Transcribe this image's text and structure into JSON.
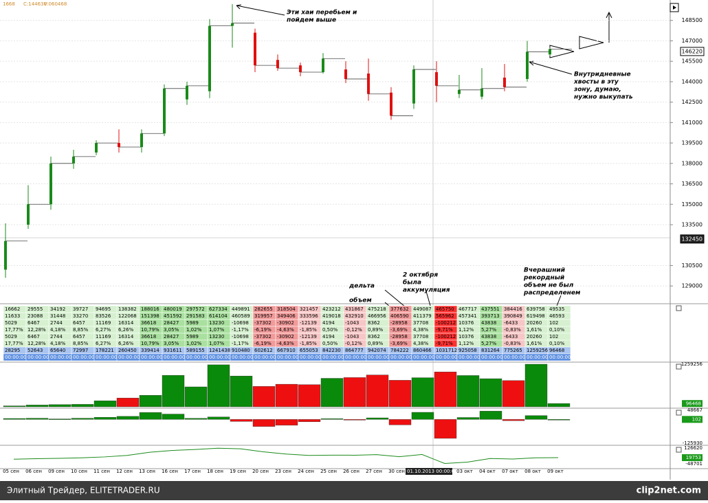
{
  "header": [
    "1668",
    "C:144630",
    "V:060468"
  ],
  "price_chart": {
    "ylim": [
      128000,
      150000
    ],
    "yticks": [
      148500,
      147000,
      145500,
      144000,
      142500,
      141000,
      139500,
      138000,
      136500,
      135000,
      133500,
      130500,
      129000
    ],
    "markers": [
      146220,
      132450
    ],
    "candles": [
      {
        "o": 130200,
        "c": 132300,
        "h": 133600,
        "l": 129600
      },
      {
        "o": 133500,
        "c": 135000,
        "h": 136400,
        "l": 133200
      },
      {
        "o": 135000,
        "c": 138000,
        "h": 138500,
        "l": 134600
      },
      {
        "o": 138000,
        "c": 138500,
        "h": 139000,
        "l": 137600
      },
      {
        "o": 138800,
        "c": 139500,
        "h": 139700,
        "l": 138600
      },
      {
        "o": 139500,
        "c": 139200,
        "h": 140500,
        "l": 138800
      },
      {
        "o": 139200,
        "c": 140200,
        "h": 140500,
        "l": 138800
      },
      {
        "o": 140200,
        "c": 143500,
        "h": 143800,
        "l": 140000
      },
      {
        "o": 142700,
        "c": 143700,
        "h": 144000,
        "l": 142300
      },
      {
        "o": 143300,
        "c": 148100,
        "h": 148600,
        "l": 142800
      },
      {
        "o": 148100,
        "c": 148300,
        "h": 149700,
        "l": 146500
      },
      {
        "o": 147600,
        "c": 145200,
        "h": 147900,
        "l": 144700
      },
      {
        "o": 145600,
        "c": 145000,
        "h": 146000,
        "l": 144800
      },
      {
        "o": 145200,
        "c": 144700,
        "h": 145400,
        "l": 144400
      },
      {
        "o": 144700,
        "c": 145700,
        "h": 146100,
        "l": 144600
      },
      {
        "o": 144900,
        "c": 144200,
        "h": 145500,
        "l": 143900
      },
      {
        "o": 144600,
        "c": 143100,
        "h": 145700,
        "l": 142600
      },
      {
        "o": 143200,
        "c": 141500,
        "h": 143600,
        "l": 141200
      },
      {
        "o": 142400,
        "c": 144900,
        "h": 145200,
        "l": 142000
      },
      {
        "o": 144700,
        "c": 143700,
        "h": 145500,
        "l": 142500
      },
      {
        "o": 143100,
        "c": 143400,
        "h": 144500,
        "l": 142800
      },
      {
        "o": 142900,
        "c": 143500,
        "h": 145000,
        "l": 142700
      },
      {
        "o": 144300,
        "c": 143600,
        "h": 145300,
        "l": 143300
      },
      {
        "o": 144200,
        "c": 146200,
        "h": 147000,
        "l": 144000
      },
      {
        "o": 146000,
        "c": 146400,
        "h": 146500,
        "l": 145900
      }
    ]
  },
  "table": {
    "cell_colors": [
      "#d6f0d0",
      "#d6f0d0",
      "#d6f0d0",
      "#d6f0d0",
      "#d6f0d0",
      "#d6f0d0",
      "#a9e09f",
      "#a9e09f",
      "#a9e09f",
      "#a9e09f",
      "#d6f0d0",
      "#f29a9a",
      "#f29a9a",
      "#f7c6c6",
      "#d6f0d0",
      "#f7c6c6",
      "#d6f0d0",
      "#f29a9a",
      "#d6f0d0",
      "#ff3030",
      "#d6f0d0",
      "#a9e09f",
      "#f7c6c6",
      "#d6f0d0",
      "#d6f0d0"
    ],
    "rows": [
      [
        "16662",
        "29555",
        "34192",
        "39727",
        "94695",
        "138382",
        "188016",
        "480019",
        "297572",
        "627334",
        "449891",
        "282655",
        "318504",
        "321457",
        "423212",
        "431867",
        "475218",
        "377632",
        "449087",
        "465750",
        "467717",
        "437551",
        "384416",
        "639758",
        "49535"
      ],
      [
        "11633",
        "23088",
        "31448",
        "33270",
        "83526",
        "122068",
        "151398",
        "451592",
        "291583",
        "614104",
        "460589",
        "319957",
        "349406",
        "333596",
        "419018",
        "432910",
        "466956",
        "406590",
        "411379",
        "565962",
        "457341",
        "393713",
        "390849",
        "619498",
        "46593"
      ],
      [
        "5029",
        "6467",
        "2744",
        "6457",
        "11169",
        "16314",
        "36618",
        "28427",
        "5989",
        "13230",
        "-10698",
        "-37302",
        "-30902",
        "-12139",
        "4194",
        "-1043",
        "8362",
        "-28958",
        "37708",
        "-100212",
        "10376",
        "43838",
        "-6433",
        "20260",
        "102"
      ],
      [
        "17,77%",
        "12,28%",
        "4,18%",
        "8,85%",
        "6,27%",
        "6,26%",
        "10,79%",
        "3,05%",
        "1,02%",
        "1,07%",
        "-1,17%",
        "-6,19%",
        "-4,63%",
        "-1,85%",
        "0,50%",
        "-0,12%",
        "0,89%",
        "-3,69%",
        "4,38%",
        "-9,71%",
        "1,12%",
        "5,27%",
        "-0,83%",
        "1,61%",
        "0,10%"
      ],
      [
        "5029",
        "6467",
        "2744",
        "6457",
        "11169",
        "16314",
        "36618",
        "28427",
        "5989",
        "13230",
        "-10698",
        "-37302",
        "-30902",
        "-12139",
        "4194",
        "-1043",
        "8362",
        "-28958",
        "37708",
        "-100212",
        "10376",
        "43838",
        "-6433",
        "20260",
        "102"
      ],
      [
        "17,77%",
        "12,28%",
        "4,18%",
        "8,85%",
        "6,27%",
        "6,26%",
        "10,79%",
        "3,05%",
        "1,02%",
        "1,07%",
        "-1,17%",
        "-6,19%",
        "-4,63%",
        "-1,85%",
        "0,50%",
        "-0,12%",
        "0,89%",
        "-3,69%",
        "4,38%",
        "-9,71%",
        "1,12%",
        "5,27%",
        "-0,83%",
        "1,61%",
        "0,10%"
      ],
      [
        "28295",
        "52643",
        "65640",
        "72997",
        "178221",
        "260450",
        "339414",
        "931611",
        "589155",
        "1241438",
        "910480",
        "602612",
        "667910",
        "655053",
        "842230",
        "864777",
        "942074",
        "784222",
        "860466",
        "1031712",
        "925058",
        "831264",
        "775265",
        "1259256",
        "96468"
      ],
      [
        "00:00:00",
        "00:00:00",
        "00:00:00",
        "00:00:00",
        "00:00:00",
        "00:00:00",
        "00:00:00",
        "00:00:00",
        "00:00:00",
        "00:00:00",
        "00:00:00",
        "00:00:00",
        "00:00:00",
        "00:00:00",
        "00:00:00",
        "00:00:00",
        "00:00:00",
        "00:00:00",
        "00:00:00",
        "00:00:00",
        "00:00:00",
        "00:00:00",
        "00:00:00",
        "00:00:00",
        "00:00:00"
      ]
    ]
  },
  "volume": {
    "ylim": [
      0,
      1259256
    ],
    "last": 96468,
    "values": [
      28295,
      52643,
      65640,
      72997,
      178221,
      260450,
      339414,
      931611,
      589155,
      1241438,
      910480,
      602612,
      667910,
      655053,
      842230,
      864777,
      942074,
      784222,
      860466,
      1031712,
      925058,
      831264,
      775265,
      1259256,
      96468
    ]
  },
  "delta": {
    "ylim": [
      -125930,
      48667
    ],
    "last": 102,
    "values": [
      5029,
      6467,
      2744,
      6457,
      11169,
      16314,
      36618,
      28427,
      5989,
      13230,
      -10698,
      -37302,
      -30902,
      -12139,
      4194,
      -1043,
      8362,
      -28958,
      37708,
      -100212,
      10376,
      43838,
      -6433,
      20260,
      102
    ]
  },
  "cum_delta": {
    "ylim": [
      -48701,
      126620
    ],
    "last": 19753,
    "values": [
      3000,
      8000,
      12000,
      18000,
      28000,
      45000,
      80000,
      100000,
      110000,
      125000,
      118000,
      85000,
      60000,
      45000,
      48000,
      47000,
      53000,
      30000,
      55000,
      -45000,
      -30000,
      10000,
      5000,
      18000,
      19753
    ]
  },
  "dates": [
    "05 сен",
    "06 сен",
    "09 сен",
    "10 сен",
    "11 сен",
    "12 сен",
    "13 сен",
    "16 сен",
    "17 сен",
    "18 сен",
    "19 сен",
    "20 сен",
    "23 сен",
    "24 сен",
    "25 сен",
    "26 сен",
    "27 сен",
    "30 сен",
    "01.10.2013 00:00:00",
    null,
    "03 окт",
    "04 окт",
    "07 окт",
    "08 окт",
    "09 окт"
  ],
  "annotations": [
    [
      "Эти хаи перебьем и",
      "пойдем выше"
    ],
    [
      "Внутридневные",
      "хвосты в эту",
      "зону, думаю,",
      "нужно выкупать"
    ],
    [
      "2 октября",
      "была",
      "аккумуляция"
    ],
    [
      "дельта"
    ],
    [
      "объем"
    ],
    [
      "Вчерашний",
      "рекордный",
      "объем не был",
      "распределенем"
    ]
  ],
  "footer": {
    "left": "Элитный Трейдер, ELITETRADER.RU",
    "right": "clip2net.com"
  }
}
